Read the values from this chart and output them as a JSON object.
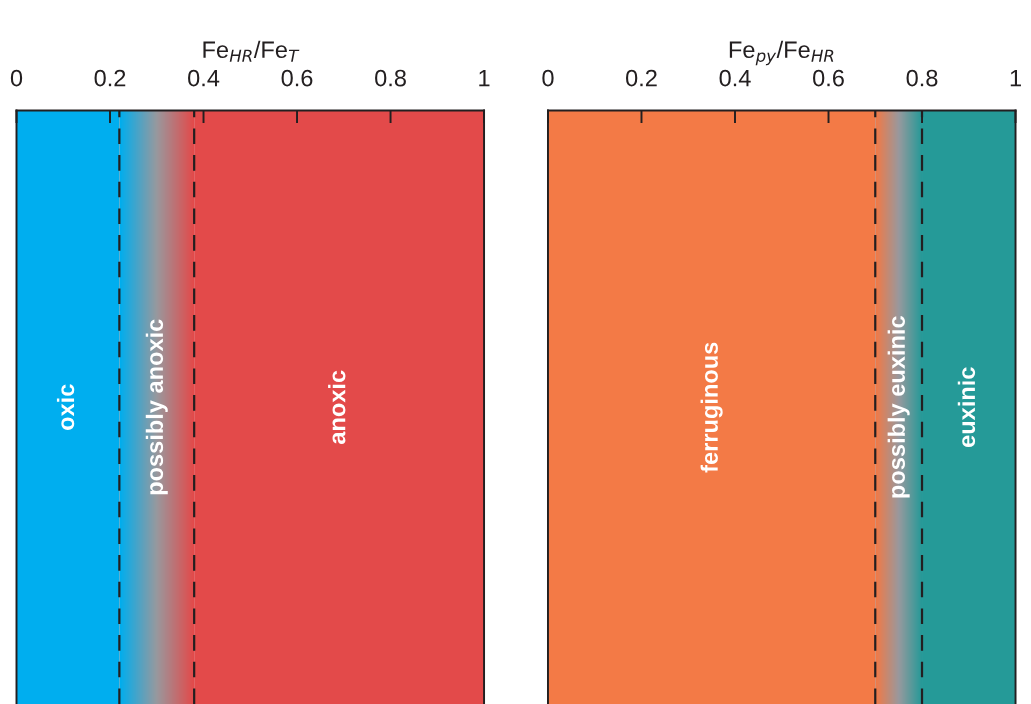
{
  "chart_data": [
    {
      "type": "bar",
      "orientation": "horizontal",
      "stacked": true,
      "xlabel": "Fe$_{HR}$/Fe$_{T}$",
      "xlim": [
        0,
        1
      ],
      "xticks": [
        0,
        0.2,
        0.4,
        0.6,
        0.8,
        1
      ],
      "tick_labels": "x",
      "legend": false,
      "categories": [
        null
      ],
      "series": [
        {
          "name": "oxic",
          "color": "#00aeef",
          "values": [
            0.22
          ]
        },
        {
          "name": "possibly anoxic",
          "values": [
            0.16
          ]
        },
        {
          "name": "anoxic",
          "color": "#e34a4a",
          "values": [
            0.62
          ]
        }
      ],
      "ref_lines": [
        {
          "axis": "x",
          "value": 0.22,
          "line_style": "dashed",
          "color": "#231f20"
        },
        {
          "axis": "x",
          "value": 0.38,
          "line_style": "dashed",
          "color": "#231f20"
        }
      ]
    },
    {
      "type": "bar",
      "orientation": "horizontal",
      "stacked": true,
      "xlabel": "Fe$_{py}$/Fe$_{HR}$",
      "xlim": [
        0,
        1
      ],
      "xticks": [
        0,
        0.2,
        0.4,
        0.6,
        0.8,
        1
      ],
      "tick_labels": "x",
      "legend": false,
      "categories": [
        null
      ],
      "series": [
        {
          "name": "ferruginous",
          "color": "#f37a46",
          "values": [
            0.7
          ]
        },
        {
          "name": "possibly euxinic",
          "values": [
            0.1
          ]
        },
        {
          "name": "euxinic",
          "color": "#259a98",
          "values": [
            0.2
          ]
        }
      ],
      "ref_lines": [
        {
          "axis": "x",
          "value": 0.7,
          "line_style": "dashed",
          "color": "#231f20"
        },
        {
          "axis": "x",
          "value": 0.8,
          "line_style": "dashed",
          "color": "#231f20"
        }
      ]
    }
  ]
}
